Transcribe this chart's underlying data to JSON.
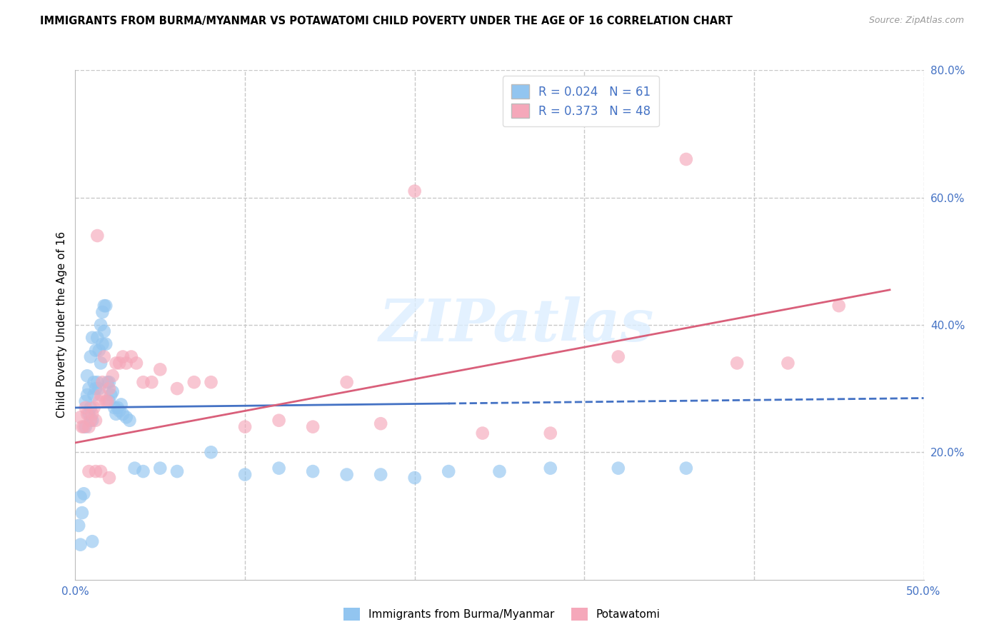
{
  "title": "IMMIGRANTS FROM BURMA/MYANMAR VS POTAWATOMI CHILD POVERTY UNDER THE AGE OF 16 CORRELATION CHART",
  "source": "Source: ZipAtlas.com",
  "ylabel": "Child Poverty Under the Age of 16",
  "xlim": [
    0,
    0.5
  ],
  "ylim": [
    0,
    0.8
  ],
  "legend_blue_r": "0.024",
  "legend_blue_n": "61",
  "legend_pink_r": "0.373",
  "legend_pink_n": "48",
  "blue_color": "#92C5F0",
  "pink_color": "#F5A8BA",
  "trendline_blue_solid": "#4472C4",
  "trendline_blue_dash": "#4472C4",
  "trendline_pink_color": "#D95F7A",
  "label_color": "#4472C4",
  "watermark_text": "ZIPatlas",
  "grid_color": "#C8C8C8",
  "background_color": "#FFFFFF",
  "blue_scatter_x": [
    0.002,
    0.003,
    0.004,
    0.005,
    0.006,
    0.006,
    0.007,
    0.007,
    0.008,
    0.008,
    0.009,
    0.009,
    0.01,
    0.01,
    0.011,
    0.011,
    0.012,
    0.012,
    0.013,
    0.013,
    0.014,
    0.014,
    0.015,
    0.015,
    0.016,
    0.016,
    0.017,
    0.017,
    0.018,
    0.018,
    0.019,
    0.02,
    0.02,
    0.021,
    0.022,
    0.023,
    0.024,
    0.025,
    0.026,
    0.027,
    0.028,
    0.03,
    0.032,
    0.035,
    0.04,
    0.05,
    0.06,
    0.08,
    0.1,
    0.12,
    0.14,
    0.16,
    0.18,
    0.2,
    0.22,
    0.25,
    0.28,
    0.32,
    0.36,
    0.01,
    0.003
  ],
  "blue_scatter_y": [
    0.085,
    0.13,
    0.105,
    0.135,
    0.24,
    0.28,
    0.29,
    0.32,
    0.26,
    0.3,
    0.27,
    0.35,
    0.25,
    0.38,
    0.29,
    0.31,
    0.3,
    0.36,
    0.31,
    0.38,
    0.3,
    0.36,
    0.34,
    0.4,
    0.37,
    0.42,
    0.39,
    0.43,
    0.37,
    0.43,
    0.31,
    0.28,
    0.31,
    0.29,
    0.295,
    0.27,
    0.26,
    0.27,
    0.265,
    0.275,
    0.26,
    0.255,
    0.25,
    0.175,
    0.17,
    0.175,
    0.17,
    0.2,
    0.165,
    0.175,
    0.17,
    0.165,
    0.165,
    0.16,
    0.17,
    0.17,
    0.175,
    0.175,
    0.175,
    0.06,
    0.055
  ],
  "pink_scatter_x": [
    0.003,
    0.004,
    0.005,
    0.006,
    0.007,
    0.008,
    0.009,
    0.01,
    0.011,
    0.012,
    0.013,
    0.014,
    0.015,
    0.016,
    0.017,
    0.018,
    0.019,
    0.02,
    0.022,
    0.024,
    0.026,
    0.028,
    0.03,
    0.033,
    0.036,
    0.04,
    0.045,
    0.05,
    0.06,
    0.07,
    0.08,
    0.1,
    0.12,
    0.14,
    0.16,
    0.18,
    0.2,
    0.24,
    0.28,
    0.32,
    0.36,
    0.39,
    0.42,
    0.45,
    0.012,
    0.015,
    0.008,
    0.02
  ],
  "pink_scatter_y": [
    0.255,
    0.24,
    0.24,
    0.27,
    0.26,
    0.24,
    0.25,
    0.26,
    0.27,
    0.25,
    0.54,
    0.28,
    0.29,
    0.31,
    0.35,
    0.28,
    0.28,
    0.3,
    0.32,
    0.34,
    0.34,
    0.35,
    0.34,
    0.35,
    0.34,
    0.31,
    0.31,
    0.33,
    0.3,
    0.31,
    0.31,
    0.24,
    0.25,
    0.24,
    0.31,
    0.245,
    0.61,
    0.23,
    0.23,
    0.35,
    0.66,
    0.34,
    0.34,
    0.43,
    0.17,
    0.17,
    0.17,
    0.16
  ],
  "trendline_blue_x0": 0.0,
  "trendline_blue_x1": 0.5,
  "trendline_blue_y0": 0.27,
  "trendline_blue_y1": 0.285,
  "trendline_blue_solid_end": 0.22,
  "trendline_pink_x0": 0.0,
  "trendline_pink_x1": 0.48,
  "trendline_pink_y0": 0.215,
  "trendline_pink_y1": 0.455
}
